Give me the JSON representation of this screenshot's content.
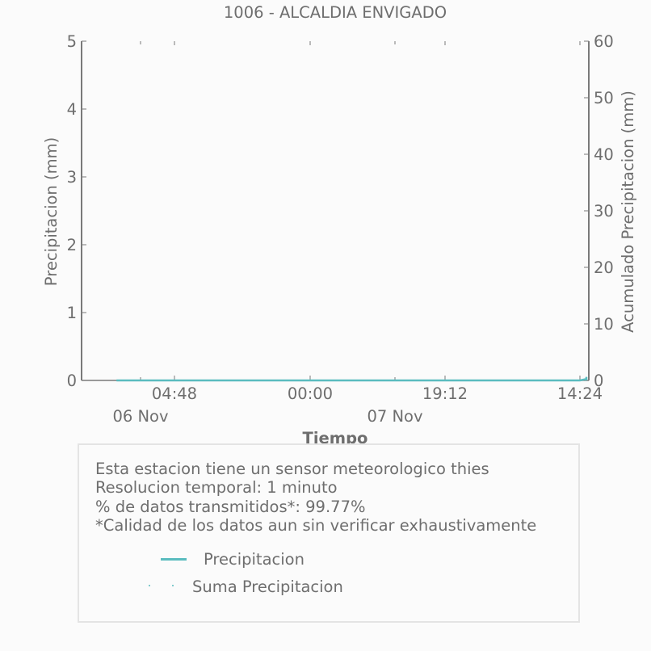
{
  "chart_data": {
    "type": "line",
    "title": "1006 - ALCALDIA ENVIGADO",
    "xlabel": "Tiempo",
    "ylabel": "Precipitacion (mm)",
    "y2label": "Acumulado Precipitacion (mm)",
    "x_tick_labels": [
      "04:48",
      "00:00",
      "19:12",
      "14:24"
    ],
    "x_date_labels": [
      "06 Nov",
      "07 Nov"
    ],
    "y_ticks": [
      0,
      1,
      2,
      3,
      4,
      5
    ],
    "y2_ticks": [
      0,
      10,
      20,
      30,
      40,
      50,
      60
    ],
    "ylim": [
      0,
      5
    ],
    "y2lim": [
      0,
      60
    ],
    "grid": false,
    "series": [
      {
        "name": "Precipitacion",
        "axis": "left",
        "color": "#5abcbf",
        "style": "solid",
        "x": [
          "06 Nov 00:00",
          "07 Nov 14:24",
          "07 Nov 15:00",
          "07 Nov 15:20",
          "07 Nov 15:40",
          "07 Nov 15:55"
        ],
        "values": [
          0,
          0,
          0.02,
          0,
          0.05,
          0
        ]
      },
      {
        "name": "Suma Precipitacion",
        "axis": "right",
        "color": "#5abcbf",
        "style": "dotted",
        "x": [
          "06 Nov 00:00",
          "07 Nov 14:24",
          "07 Nov 15:00",
          "07 Nov 15:40",
          "07 Nov 15:55"
        ],
        "values": [
          0,
          0,
          0.1,
          0.4,
          0.6
        ]
      }
    ]
  },
  "info": {
    "line1": "Esta estacion tiene un sensor meteorologico thies",
    "line2": "Resolucion temporal: 1 minuto",
    "line3": "% de datos transmitidos*: 99.77%",
    "line4": "*Calidad de los datos aun sin verificar exhaustivamente"
  },
  "legend": {
    "item1": "Precipitacion",
    "item2": "Suma Precipitacion"
  }
}
